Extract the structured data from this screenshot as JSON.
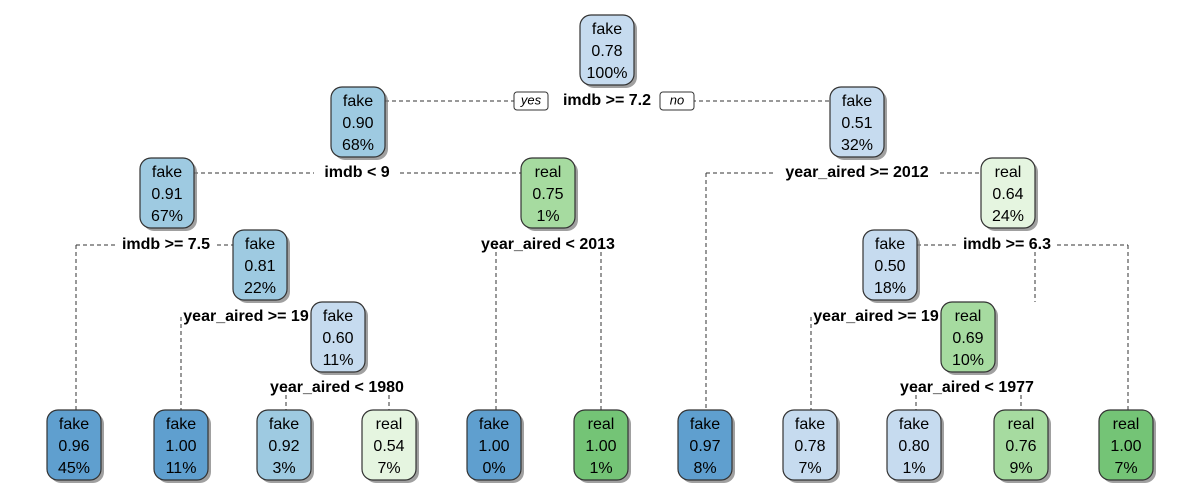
{
  "yes_label": "yes",
  "no_label": "no",
  "colors": {
    "fake_light": "#c6dbef",
    "fake_mid": "#9ecae1",
    "fake_dark": "#5f9fcf",
    "real_light": "#e5f5e0",
    "real_mid": "#a6dba0",
    "real_dark": "#74c476"
  },
  "nodes": [
    {
      "id": "n1",
      "label": "fake",
      "prob": "0.78",
      "pct": "100%",
      "shade": "fake_light"
    },
    {
      "id": "n2",
      "label": "fake",
      "prob": "0.90",
      "pct": "68%",
      "shade": "fake_mid"
    },
    {
      "id": "n3",
      "label": "fake",
      "prob": "0.51",
      "pct": "32%",
      "shade": "fake_light"
    },
    {
      "id": "n4",
      "label": "fake",
      "prob": "0.91",
      "pct": "67%",
      "shade": "fake_mid"
    },
    {
      "id": "n5",
      "label": "real",
      "prob": "0.75",
      "pct": "1%",
      "shade": "real_mid"
    },
    {
      "id": "n6",
      "label": "real",
      "prob": "0.64",
      "pct": "24%",
      "shade": "real_light"
    },
    {
      "id": "n7",
      "label": "fake",
      "prob": "0.81",
      "pct": "22%",
      "shade": "fake_mid"
    },
    {
      "id": "n8",
      "label": "fake",
      "prob": "0.50",
      "pct": "18%",
      "shade": "fake_light"
    },
    {
      "id": "n9",
      "label": "fake",
      "prob": "0.60",
      "pct": "11%",
      "shade": "fake_light"
    },
    {
      "id": "n10",
      "label": "real",
      "prob": "0.69",
      "pct": "10%",
      "shade": "real_mid"
    },
    {
      "id": "l1",
      "label": "fake",
      "prob": "0.96",
      "pct": "45%",
      "shade": "fake_dark"
    },
    {
      "id": "l2",
      "label": "fake",
      "prob": "1.00",
      "pct": "11%",
      "shade": "fake_dark"
    },
    {
      "id": "l3",
      "label": "fake",
      "prob": "0.92",
      "pct": "3%",
      "shade": "fake_mid"
    },
    {
      "id": "l4",
      "label": "real",
      "prob": "0.54",
      "pct": "7%",
      "shade": "real_light"
    },
    {
      "id": "l5",
      "label": "fake",
      "prob": "1.00",
      "pct": "0%",
      "shade": "fake_dark"
    },
    {
      "id": "l6",
      "label": "real",
      "prob": "1.00",
      "pct": "1%",
      "shade": "real_dark"
    },
    {
      "id": "l7",
      "label": "fake",
      "prob": "0.97",
      "pct": "8%",
      "shade": "fake_dark"
    },
    {
      "id": "l8",
      "label": "fake",
      "prob": "0.78",
      "pct": "7%",
      "shade": "fake_light"
    },
    {
      "id": "l9",
      "label": "fake",
      "prob": "0.80",
      "pct": "1%",
      "shade": "fake_light"
    },
    {
      "id": "l10",
      "label": "real",
      "prob": "0.76",
      "pct": "9%",
      "shade": "real_mid"
    },
    {
      "id": "l11",
      "label": "real",
      "prob": "1.00",
      "pct": "7%",
      "shade": "real_dark"
    }
  ],
  "splits": [
    {
      "id": "s1",
      "text": "imdb >= 7.2"
    },
    {
      "id": "s2",
      "text": "imdb < 9"
    },
    {
      "id": "s3",
      "text": "year_aired >= 2012"
    },
    {
      "id": "s4",
      "text": "imdb >= 7.5"
    },
    {
      "id": "s5",
      "text": "year_aired < 2013"
    },
    {
      "id": "s6",
      "text": "imdb >= 6.3"
    },
    {
      "id": "s7",
      "text": "year_aired >= 19"
    },
    {
      "id": "s8",
      "text": "year_aired >= 19"
    },
    {
      "id": "s9",
      "text": "year_aired < 1980"
    },
    {
      "id": "s10",
      "text": "year_aired < 1977"
    }
  ]
}
